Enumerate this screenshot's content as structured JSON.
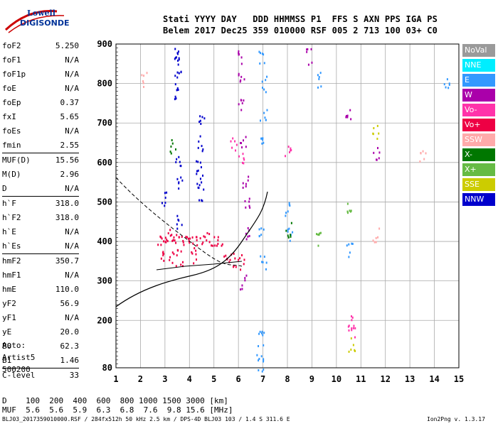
{
  "logo": {
    "line1": "Lowell",
    "line2": "DIGISONDE"
  },
  "header": {
    "line1": "Stati YYYY DAY   DDD HHMMSS P1  FFS S AXN PPS IGA PS",
    "line2": "Belem 2017 Dec25 359 010000 RSF 005 2 713 100 03+ C0"
  },
  "params": [
    {
      "label": "foF2",
      "value": "5.250"
    },
    {
      "label": "foF1",
      "value": "N/A"
    },
    {
      "label": "foF1p",
      "value": "N/A"
    },
    {
      "label": "foE",
      "value": "N/A"
    },
    {
      "label": "foEp",
      "value": "0.37"
    },
    {
      "label": "fxI",
      "value": "5.65"
    },
    {
      "label": "foEs",
      "value": "N/A"
    },
    {
      "label": "fmin",
      "value": "2.55"
    },
    {
      "label": "MUF(D)",
      "value": "15.56",
      "sep": true
    },
    {
      "label": "M(D)",
      "value": "2.96"
    },
    {
      "label": "D",
      "value": "N/A"
    },
    {
      "label": "h`F",
      "value": "318.0",
      "sep": true
    },
    {
      "label": "h`F2",
      "value": "318.0"
    },
    {
      "label": "h`E",
      "value": "N/A"
    },
    {
      "label": "h`Es",
      "value": "N/A"
    },
    {
      "label": "hmF2",
      "value": "350.7",
      "sep": true
    },
    {
      "label": "hmF1",
      "value": "N/A"
    },
    {
      "label": "hmE",
      "value": "110.0"
    },
    {
      "label": "yF2",
      "value": "56.9"
    },
    {
      "label": "yF1",
      "value": "N/A"
    },
    {
      "label": "yE",
      "value": "20.0"
    },
    {
      "label": "B0",
      "value": "62.3"
    },
    {
      "label": "B1",
      "value": "1.46"
    },
    {
      "label": "C-level",
      "value": "33",
      "sep": true
    }
  ],
  "auto": {
    "line1": "Auto:",
    "line2": "Artist5",
    "line3": "500200"
  },
  "legend": [
    {
      "label": "NoVal",
      "color": "#9a9a9a"
    },
    {
      "label": "NNE",
      "color": "#00eeff"
    },
    {
      "label": "E",
      "color": "#3399ff"
    },
    {
      "label": "W",
      "color": "#aa00aa"
    },
    {
      "label": "Vo-",
      "color": "#ff33aa"
    },
    {
      "label": "Vo+",
      "color": "#ee0044"
    },
    {
      "label": "SSW",
      "color": "#ffaaaa"
    },
    {
      "label": "X-",
      "color": "#007700"
    },
    {
      "label": "X+",
      "color": "#66bb44"
    },
    {
      "label": "SSE",
      "color": "#cccc00"
    },
    {
      "label": "NNW",
      "color": "#0000cc"
    }
  ],
  "bottom": {
    "d_line": "D    100  200  400  600  800 1000 1500 3000 [km]",
    "muf_line": "MUF  5.6  5.6  5.9  6.3  6.8  7.6  9.8 15.6 [MHz]"
  },
  "footer": {
    "left": "BLJ03_2017359010000.RSF / 284fx512h 50 kHz 2.5 km / DPS-4D BLJ03 103 / 1.4 S 311.6 E",
    "right": "Ion2Png v. 1.3.17"
  },
  "chart_data": {
    "type": "scatter",
    "xlim": [
      1,
      15
    ],
    "ylim": [
      80,
      900
    ],
    "xticks": [
      1,
      2,
      3,
      4,
      5,
      6,
      7,
      8,
      9,
      10,
      11,
      12,
      13,
      14,
      15
    ],
    "yticks": [
      80,
      200,
      300,
      400,
      500,
      600,
      700,
      800,
      900
    ],
    "grid": true,
    "series": [
      {
        "name": "NNW",
        "color": "#0000cc",
        "points": [
          [
            3.5,
            880
          ],
          [
            3.5,
            850
          ],
          [
            3.5,
            820
          ],
          [
            3.5,
            780
          ],
          [
            3.55,
            600
          ],
          [
            3.55,
            550
          ],
          [
            4.4,
            650
          ],
          [
            4.4,
            600
          ],
          [
            4.4,
            560
          ],
          [
            4.45,
            520
          ],
          [
            4.5,
            700
          ],
          [
            3.0,
            510
          ],
          [
            3.6,
            450
          ]
        ]
      },
      {
        "name": "Vo+",
        "color": "#ee0044",
        "points": [
          [
            2.8,
            410
          ],
          [
            3.0,
            420
          ],
          [
            3.2,
            415
          ],
          [
            3.5,
            400
          ],
          [
            3.8,
            410
          ],
          [
            4.0,
            400
          ],
          [
            4.3,
            395
          ],
          [
            4.6,
            405
          ],
          [
            4.9,
            410
          ],
          [
            5.2,
            400
          ],
          [
            5.5,
            360
          ],
          [
            5.8,
            355
          ],
          [
            6.1,
            350
          ],
          [
            2.9,
            360
          ],
          [
            3.3,
            355
          ],
          [
            3.6,
            360
          ],
          [
            4.2,
            365
          ]
        ]
      },
      {
        "name": "W",
        "color": "#aa00aa",
        "points": [
          [
            6.1,
            870
          ],
          [
            6.1,
            820
          ],
          [
            6.1,
            750
          ],
          [
            6.2,
            650
          ],
          [
            6.3,
            550
          ],
          [
            6.3,
            500
          ],
          [
            6.4,
            420
          ],
          [
            6.2,
            300
          ],
          [
            8.9,
            870
          ],
          [
            10.5,
            720
          ],
          [
            11.6,
            620
          ]
        ]
      },
      {
        "name": "E",
        "color": "#3399ff",
        "points": [
          [
            6.9,
            870
          ],
          [
            7.0,
            800
          ],
          [
            7.0,
            720
          ],
          [
            7.0,
            650
          ],
          [
            6.95,
            420
          ],
          [
            7.0,
            350
          ],
          [
            6.9,
            180
          ],
          [
            6.85,
            120
          ],
          [
            6.9,
            90
          ],
          [
            8.0,
            480
          ],
          [
            8.1,
            420
          ],
          [
            9.3,
            810
          ],
          [
            10.5,
            380
          ],
          [
            14.5,
            810
          ]
        ]
      },
      {
        "name": "Vo-",
        "color": "#ff33aa",
        "points": [
          [
            5.8,
            650
          ],
          [
            6.1,
            610
          ],
          [
            8.0,
            630
          ],
          [
            10.6,
            200
          ],
          [
            10.6,
            170
          ]
        ]
      },
      {
        "name": "X+",
        "color": "#66bb44",
        "points": [
          [
            10.5,
            480
          ],
          [
            9.3,
            410
          ]
        ]
      },
      {
        "name": "SSW",
        "color": "#ffaaaa",
        "points": [
          [
            11.6,
            420
          ],
          [
            13.5,
            620
          ],
          [
            2.1,
            810
          ]
        ]
      },
      {
        "name": "SSE",
        "color": "#cccc00",
        "points": [
          [
            11.6,
            680
          ],
          [
            10.6,
            140
          ]
        ]
      },
      {
        "name": "X-",
        "color": "#007700",
        "points": [
          [
            3.3,
            640
          ],
          [
            8.0,
            430
          ]
        ]
      }
    ]
  }
}
